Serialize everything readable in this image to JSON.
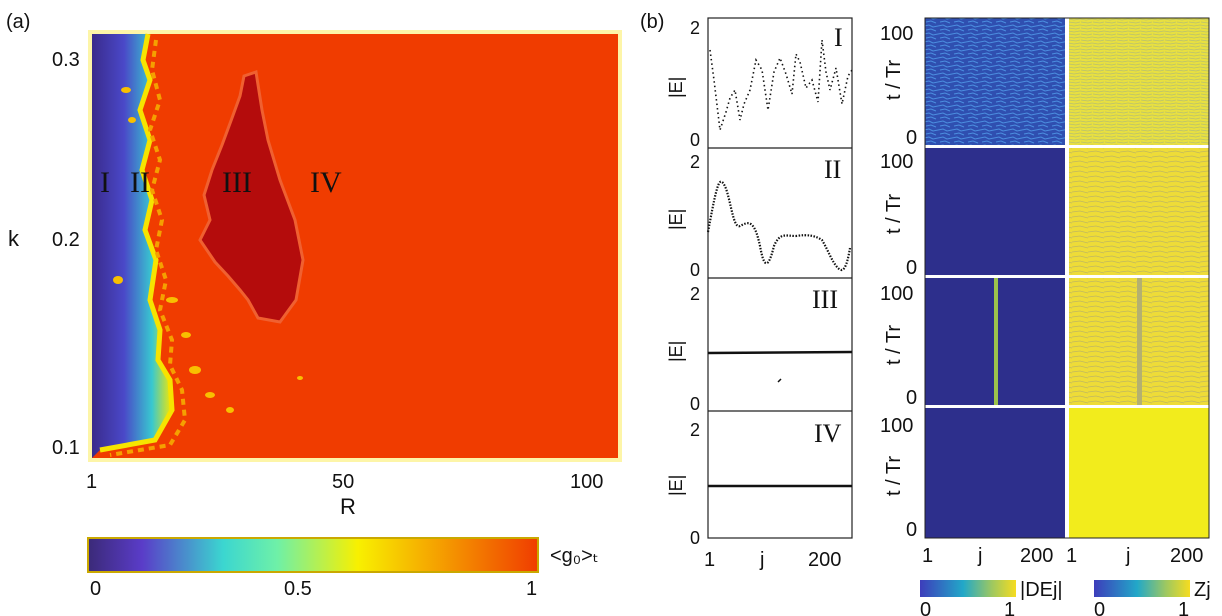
{
  "panel_labels": {
    "a": "(a)",
    "b": "(b)"
  },
  "chart_data": [
    {
      "type": "heatmap",
      "panel": "(a)",
      "xlabel": "R",
      "ylabel": "k",
      "xlim": [
        1,
        100
      ],
      "ylim": [
        0.1,
        0.3
      ],
      "x_ticks": [
        "1",
        "50",
        "100"
      ],
      "y_ticks": [
        "0.3",
        "0.2",
        "0.1"
      ],
      "regions": [
        "I",
        "II",
        "III",
        "IV"
      ],
      "colorbar": {
        "label": "<g₀>ₜ",
        "ticks": [
          "0",
          "0.5",
          "1"
        ],
        "range": [
          0,
          1
        ]
      },
      "colors": {
        "low": "#3b2a8a",
        "mid": "#40e0c8",
        "high_yellow": "#f5f000",
        "max": "#f03c00",
        "region_iii": "#b40c0c"
      }
    },
    {
      "type": "scatter",
      "panel": "(b)",
      "ylabel": "|E|",
      "xlabel": "j",
      "xlim": [
        1,
        200
      ],
      "ylim": [
        0,
        2
      ],
      "x_ticks": [
        "1",
        "j",
        "200"
      ],
      "y_ticks": [
        "2",
        "0"
      ],
      "rows": [
        {
          "region": "I",
          "behavior": "chaotic"
        },
        {
          "region": "II",
          "behavior": "oscillating"
        },
        {
          "region": "III",
          "level": 0.95
        },
        {
          "region": "IV",
          "level": 1.0
        }
      ]
    },
    {
      "type": "heatmap",
      "panel": "(b)",
      "ylabel": "t / Tr",
      "y_ticks": [
        "100",
        "0"
      ],
      "columns": [
        {
          "quantity": "|DEj|",
          "x_ticks": [
            "1",
            "j",
            "200"
          ]
        },
        {
          "quantity": "Zj",
          "x_ticks": [
            "1",
            "j",
            "200"
          ]
        }
      ],
      "colorbars": [
        {
          "label": "|DEj|",
          "ticks": [
            "0",
            "1"
          ]
        },
        {
          "label": "Zj",
          "ticks": [
            "0",
            "1"
          ]
        }
      ]
    }
  ]
}
